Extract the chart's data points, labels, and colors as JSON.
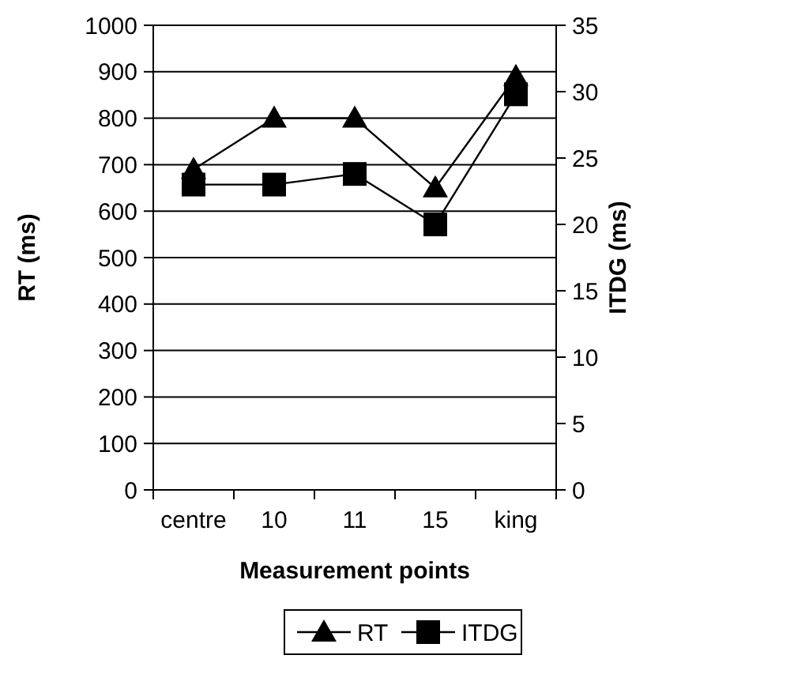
{
  "chart_data": {
    "type": "line",
    "xlabel": "Measurement points",
    "ylabel": "RT (ms)",
    "y2label": "ITDG (ms)",
    "categories": [
      "centre",
      "10",
      "11",
      "15",
      "king"
    ],
    "series": [
      {
        "name": "RT",
        "color": "#000000",
        "marker": "triangle",
        "values": [
          690,
          800,
          800,
          650,
          890
        ]
      },
      {
        "name": "ITDG",
        "color": "#000000",
        "marker": "square",
        "axis": "y2",
        "values": [
          23,
          23,
          23.8,
          20,
          29.8
        ]
      }
    ],
    "ylim": [
      0,
      1000
    ],
    "yticks": [
      0,
      100,
      200,
      300,
      400,
      500,
      600,
      700,
      800,
      900,
      1000
    ],
    "y2lim": [
      0,
      35
    ],
    "y2ticks": [
      0,
      5,
      10,
      15,
      20,
      25,
      30,
      35
    ],
    "grid": "y",
    "legend": "bottom",
    "line_style": "solid"
  }
}
